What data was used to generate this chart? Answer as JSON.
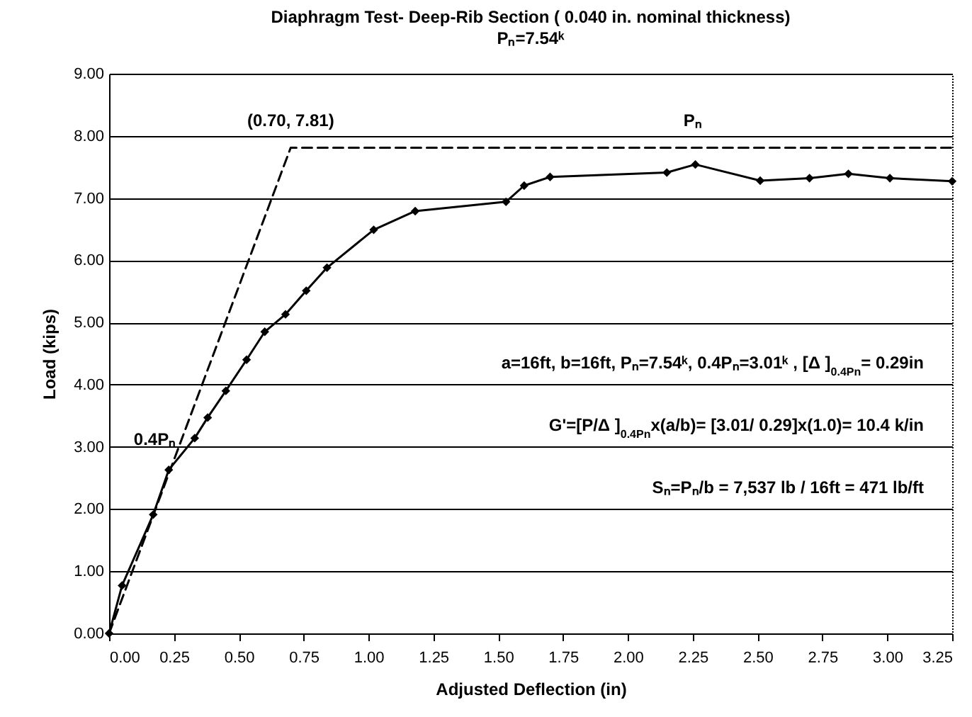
{
  "chart_data": {
    "type": "line",
    "title": "Diaphragm Test- Deep-Rib Section ( 0.040 in. nominal thickness)",
    "subtitle": "Pₙ=7.54ᵏ",
    "xlabel": "Adjusted Deflection (in)",
    "ylabel": "Load (kips)",
    "xlim": [
      0,
      3.25
    ],
    "xticks": [
      {
        "value": 0,
        "label": "0.00"
      },
      {
        "value": 0.25,
        "label": "0.25"
      },
      {
        "value": 0.5,
        "label": "0.50"
      },
      {
        "value": 0.75,
        "label": "0.75"
      },
      {
        "value": 1,
        "label": "1.00"
      },
      {
        "value": 1.25,
        "label": "1.25"
      },
      {
        "value": 1.5,
        "label": "1.50"
      },
      {
        "value": 1.75,
        "label": "1.75"
      },
      {
        "value": 2,
        "label": "2.00"
      },
      {
        "value": 2.25,
        "label": "2.25"
      },
      {
        "value": 2.5,
        "label": "2.50"
      },
      {
        "value": 2.75,
        "label": "2.75"
      },
      {
        "value": 3,
        "label": "3.00"
      },
      {
        "value": 3.25,
        "label": "3.25"
      }
    ],
    "ylim": [
      0,
      9
    ],
    "yticks": [
      {
        "value": 0,
        "label": "0.00"
      },
      {
        "value": 1,
        "label": "1.00"
      },
      {
        "value": 2,
        "label": "2.00"
      },
      {
        "value": 3,
        "label": "3.00"
      },
      {
        "value": 4,
        "label": "4.00"
      },
      {
        "value": 5,
        "label": "5.00"
      },
      {
        "value": 6,
        "label": "6.00"
      },
      {
        "value": 7,
        "label": "7.00"
      },
      {
        "value": 8,
        "label": "8.00"
      },
      {
        "value": 9,
        "label": "9.00"
      }
    ],
    "grid": "y",
    "series": [
      {
        "color": "#000000",
        "marker": "diamond",
        "line_style": "solid",
        "x": [
          0,
          0.05,
          0.17,
          0.23,
          0.33,
          0.38,
          0.45,
          0.53,
          0.6,
          0.68,
          0.76,
          0.84,
          1.02,
          1.18,
          1.53,
          1.6,
          1.7,
          2.15,
          2.26,
          2.51,
          2.7,
          2.85,
          3.01,
          3.25
        ],
        "values": [
          0,
          0.77,
          1.91,
          2.63,
          3.14,
          3.47,
          3.9,
          4.4,
          4.85,
          5.13,
          5.51,
          5.88,
          6.49,
          6.79,
          6.94,
          7.2,
          7.34,
          7.41,
          7.54,
          7.28,
          7.32,
          7.39,
          7.32,
          7.27
        ]
      },
      {
        "color": "#000000",
        "marker": "none",
        "line_style": "dashed",
        "x": [
          0,
          0.7,
          3.25
        ],
        "values": [
          0,
          7.81,
          7.81
        ]
      }
    ],
    "annotations": [
      {
        "text": "(0.70, 7.81)",
        "x": 0.7,
        "y": 7.81
      },
      {
        "text": "Pₙ",
        "x": 2.25,
        "y": 7.81
      },
      {
        "text": "0.4Pₙ",
        "x": 0.29,
        "y": 3.01
      },
      "a=16ft,  b=16ft,  Pₙ=7.54ᵏ,  0.4Pₙ=3.01ᵏ , [Δ ]$_{0.4Pn}$= 0.29in",
      "G'=[P/Δ ]$_{0.4Pn}$x(a/b)= [3.01/ 0.29]x(1.0)= 10.4 k/in",
      "Sₙ=Pₙ/b = 7,537 lb / 16ft = 471 lb/ft"
    ]
  }
}
